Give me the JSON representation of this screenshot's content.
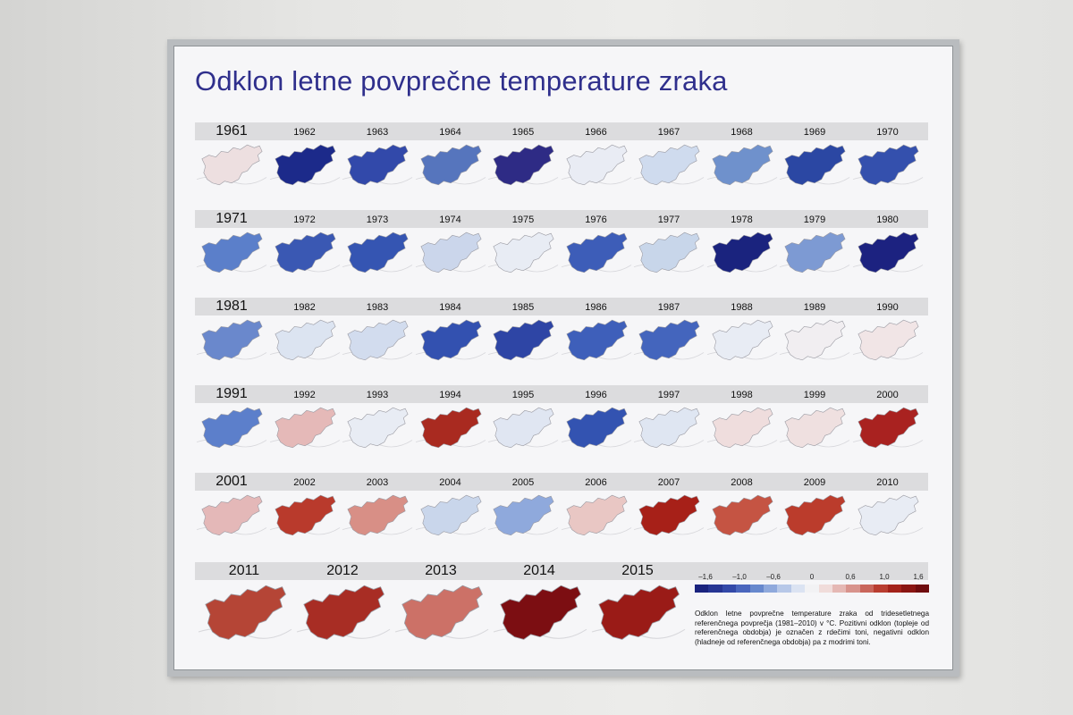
{
  "poster": {
    "title": "Odklon letne povprečne temperature zraka",
    "rows": [
      {
        "years": [
          1961,
          1962,
          1963,
          1964,
          1965,
          1966,
          1967,
          1968,
          1969,
          1970
        ],
        "colors": [
          "#eddfe0",
          "#1c2a8a",
          "#3249aa",
          "#5675bd",
          "#2e2b85",
          "#e9ecf4",
          "#cfdbee",
          "#6f91cc",
          "#2b47a3",
          "#3450ad"
        ]
      },
      {
        "years": [
          1971,
          1972,
          1973,
          1974,
          1975,
          1976,
          1977,
          1978,
          1979,
          1980
        ],
        "colors": [
          "#5b7fca",
          "#3a58b3",
          "#3555b2",
          "#cbd6eb",
          "#e8ecf4",
          "#3d5db8",
          "#c8d6ea",
          "#1a237e",
          "#7d9ad3",
          "#1c2280"
        ]
      },
      {
        "years": [
          1981,
          1982,
          1983,
          1984,
          1985,
          1986,
          1987,
          1988,
          1989,
          1990
        ],
        "colors": [
          "#6a88cc",
          "#dce4f1",
          "#d2dcee",
          "#3351b0",
          "#2e45a5",
          "#3e5fba",
          "#4465bd",
          "#e8ecf4",
          "#f1eef1",
          "#f1e5e6"
        ]
      },
      {
        "years": [
          1991,
          1992,
          1993,
          1994,
          1995,
          1996,
          1997,
          1998,
          1999,
          2000
        ],
        "colors": [
          "#5c7fcb",
          "#e5b9b8",
          "#e8ecf4",
          "#a92a20",
          "#e0e6f2",
          "#3353b1",
          "#dfe6f2",
          "#efdddd",
          "#efe0e0",
          "#a92220"
        ]
      },
      {
        "years": [
          2001,
          2002,
          2003,
          2004,
          2005,
          2006,
          2007,
          2008,
          2009,
          2010
        ],
        "colors": [
          "#e4b8b8",
          "#b93a2c",
          "#d88f86",
          "#c9d6eb",
          "#8fa9dc",
          "#e9c7c4",
          "#a72018",
          "#c55443",
          "#bb3c2c",
          "#e8ecf4"
        ]
      },
      {
        "years": [
          2011,
          2012,
          2013,
          2014,
          2015
        ],
        "colors": [
          "#b54536",
          "#a82d24",
          "#cc7167",
          "#7c0e12",
          "#9a1b17"
        ]
      }
    ],
    "legend": {
      "labels": [
        "–1,6",
        "–1,0",
        "–0,6",
        "0",
        "0,6",
        "1,0",
        "1,6"
      ],
      "colors": [
        "#1a237e",
        "#263593",
        "#3349a8",
        "#4a66bd",
        "#6788cd",
        "#8fa9dc",
        "#b7c8e8",
        "#dbe3f2",
        "#f2f2f4",
        "#f0dcda",
        "#e5b8b4",
        "#d8938c",
        "#c9665b",
        "#b93d30",
        "#a3221a",
        "#8a1512",
        "#6f0c0e"
      ]
    },
    "caption": "Odklon letne povprečne temperature zraka od tridesetletnega referenčnega povprečja (1981–2010) v °C. Pozitivni odklon (topleje od referenčnega obdobja) je označen z rdečimi toni, negativni odklon (hladneje od referenčnega obdobja) pa z modrimi toni."
  }
}
